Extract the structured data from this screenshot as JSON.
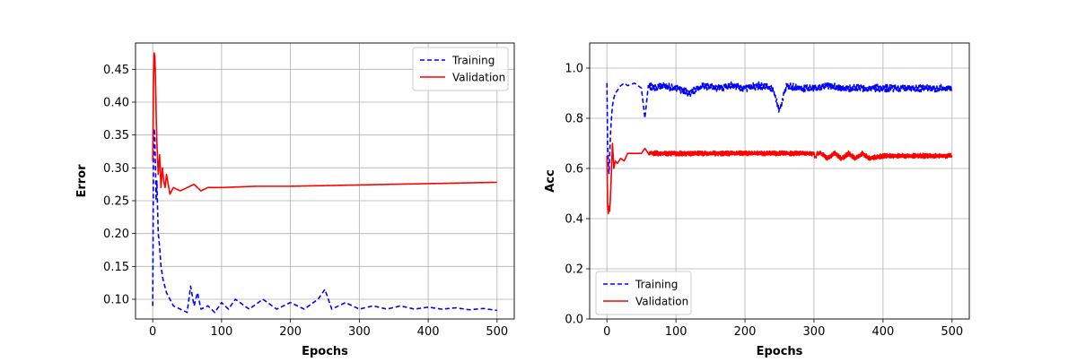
{
  "chart_data": [
    {
      "type": "line",
      "xlabel": "Epochs",
      "ylabel": "Error",
      "xlim": [
        -25,
        525
      ],
      "ylim": [
        0.07,
        0.49
      ],
      "xticks": [
        0,
        100,
        200,
        300,
        400,
        500
      ],
      "yticks": [
        0.1,
        0.15,
        0.2,
        0.25,
        0.3,
        0.35,
        0.4,
        0.45
      ],
      "ytick_labels": [
        "0.10",
        "0.15",
        "0.20",
        "0.25",
        "0.30",
        "0.35",
        "0.40",
        "0.45"
      ],
      "grid": true,
      "legend_position": "top-right",
      "series": [
        {
          "name": "Training",
          "color": "#0000ff",
          "style": "dashed",
          "x": [
            0,
            1,
            2,
            3,
            4,
            5,
            6,
            8,
            10,
            12,
            15,
            20,
            25,
            30,
            40,
            50,
            55,
            60,
            65,
            70,
            80,
            90,
            100,
            110,
            120,
            140,
            160,
            180,
            200,
            220,
            240,
            250,
            260,
            280,
            300,
            320,
            340,
            360,
            380,
            400,
            420,
            440,
            460,
            480,
            500
          ],
          "y": [
            0.09,
            0.3,
            0.36,
            0.35,
            0.3,
            0.25,
            0.28,
            0.2,
            0.18,
            0.15,
            0.13,
            0.11,
            0.1,
            0.09,
            0.085,
            0.08,
            0.12,
            0.09,
            0.11,
            0.085,
            0.09,
            0.08,
            0.095,
            0.085,
            0.1,
            0.085,
            0.1,
            0.085,
            0.095,
            0.085,
            0.1,
            0.115,
            0.085,
            0.095,
            0.085,
            0.09,
            0.085,
            0.09,
            0.085,
            0.088,
            0.085,
            0.087,
            0.084,
            0.086,
            0.083
          ]
        },
        {
          "name": "Validation",
          "color": "#ff0000",
          "style": "solid",
          "x": [
            0,
            1,
            2,
            3,
            4,
            5,
            6,
            8,
            10,
            12,
            14,
            16,
            18,
            20,
            25,
            30,
            40,
            50,
            60,
            70,
            80,
            100,
            150,
            200,
            250,
            300,
            350,
            400,
            450,
            500
          ],
          "y": [
            0.31,
            0.42,
            0.475,
            0.47,
            0.44,
            0.38,
            0.34,
            0.29,
            0.32,
            0.27,
            0.3,
            0.28,
            0.27,
            0.29,
            0.26,
            0.27,
            0.265,
            0.27,
            0.275,
            0.265,
            0.27,
            0.27,
            0.272,
            0.272,
            0.273,
            0.274,
            0.275,
            0.276,
            0.277,
            0.278
          ]
        }
      ]
    },
    {
      "type": "line",
      "xlabel": "Epochs",
      "ylabel": "Acc",
      "xlim": [
        -25,
        525
      ],
      "ylim": [
        0.0,
        1.1
      ],
      "xticks": [
        0,
        100,
        200,
        300,
        400,
        500
      ],
      "yticks": [
        0.0,
        0.2,
        0.4,
        0.6,
        0.8,
        1.0
      ],
      "ytick_labels": [
        "0.0",
        "0.2",
        "0.4",
        "0.6",
        "0.8",
        "1.0"
      ],
      "grid": true,
      "legend_position": "bottom-left",
      "series": [
        {
          "name": "Training",
          "color": "#0000ff",
          "style": "dashed",
          "x": [
            0,
            1,
            2,
            3,
            4,
            5,
            6,
            8,
            10,
            12,
            15,
            20,
            25,
            30,
            40,
            50,
            55,
            60,
            70,
            80,
            100,
            120,
            140,
            160,
            180,
            200,
            220,
            240,
            250,
            260,
            280,
            300,
            320,
            340,
            360,
            380,
            400,
            420,
            440,
            460,
            480,
            500
          ],
          "y": [
            0.94,
            0.7,
            0.62,
            0.58,
            0.65,
            0.72,
            0.78,
            0.85,
            0.88,
            0.9,
            0.91,
            0.93,
            0.94,
            0.93,
            0.94,
            0.92,
            0.8,
            0.93,
            0.92,
            0.93,
            0.92,
            0.9,
            0.93,
            0.92,
            0.93,
            0.92,
            0.93,
            0.92,
            0.83,
            0.93,
            0.92,
            0.92,
            0.93,
            0.92,
            0.92,
            0.92,
            0.92,
            0.92,
            0.92,
            0.92,
            0.92,
            0.92
          ],
          "band": [
            0.91,
            0.94
          ]
        },
        {
          "name": "Validation",
          "color": "#ff0000",
          "style": "solid",
          "x": [
            0,
            1,
            2,
            3,
            4,
            5,
            6,
            8,
            10,
            12,
            15,
            20,
            25,
            30,
            40,
            50,
            55,
            60,
            65,
            80,
            100,
            150,
            200,
            250,
            300,
            302,
            305,
            310,
            320,
            330,
            340,
            350,
            360,
            370,
            380,
            400,
            450,
            500
          ],
          "y": [
            0.65,
            0.46,
            0.42,
            0.45,
            0.43,
            0.48,
            0.55,
            0.7,
            0.6,
            0.63,
            0.62,
            0.64,
            0.63,
            0.66,
            0.66,
            0.66,
            0.68,
            0.66,
            0.66,
            0.66,
            0.66,
            0.66,
            0.66,
            0.66,
            0.66,
            0.64,
            0.66,
            0.66,
            0.64,
            0.66,
            0.64,
            0.66,
            0.64,
            0.66,
            0.64,
            0.65,
            0.65,
            0.65
          ],
          "band": [
            0.64,
            0.66
          ]
        }
      ]
    }
  ]
}
